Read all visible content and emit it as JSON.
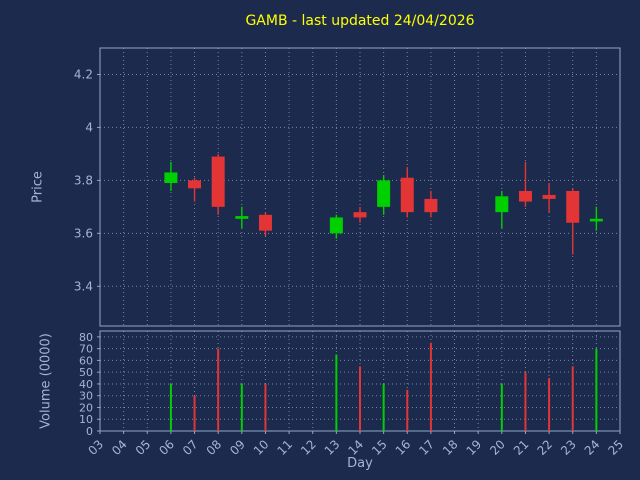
{
  "chart_data": {
    "type": "candlestick",
    "title": "GAMB - last updated 24/04/2026",
    "xlabel": "Day",
    "ylabel_price": "Price",
    "ylabel_volume": "Volume (0000)",
    "x_tick_labels": [
      "03",
      "04",
      "05",
      "06",
      "07",
      "08",
      "09",
      "10",
      "11",
      "12",
      "13",
      "14",
      "15",
      "16",
      "17",
      "18",
      "19",
      "20",
      "21",
      "22",
      "23",
      "24",
      "25"
    ],
    "price_ticks": [
      3.4,
      3.6,
      3.8,
      4.0,
      4.2
    ],
    "price_tick_labels": [
      "3.4",
      "3.6",
      "3.8",
      "4",
      "4.2"
    ],
    "volume_ticks": [
      0,
      10,
      20,
      30,
      40,
      50,
      60,
      70,
      80
    ],
    "volume_tick_labels": [
      "0",
      "10",
      "20",
      "30",
      "40",
      "50",
      "60",
      "70",
      "80"
    ],
    "xlim": [
      3,
      25
    ],
    "price_ylim": [
      3.25,
      4.3
    ],
    "volume_ylim": [
      0,
      85
    ],
    "grid": true,
    "series": [
      {
        "day": 6,
        "open": 3.79,
        "high": 3.87,
        "low": 3.76,
        "close": 3.83,
        "volume": 40
      },
      {
        "day": 7,
        "open": 3.8,
        "high": 3.81,
        "low": 3.72,
        "close": 3.77,
        "volume": 30
      },
      {
        "day": 8,
        "open": 3.89,
        "high": 3.9,
        "low": 3.67,
        "close": 3.7,
        "volume": 70
      },
      {
        "day": 9,
        "open": 3.655,
        "high": 3.7,
        "low": 3.62,
        "close": 3.665,
        "volume": 40
      },
      {
        "day": 10,
        "open": 3.67,
        "high": 3.68,
        "low": 3.59,
        "close": 3.61,
        "volume": 40
      },
      {
        "day": 13,
        "open": 3.6,
        "high": 3.67,
        "low": 3.58,
        "close": 3.66,
        "volume": 65
      },
      {
        "day": 14,
        "open": 3.68,
        "high": 3.7,
        "low": 3.64,
        "close": 3.66,
        "volume": 55
      },
      {
        "day": 15,
        "open": 3.7,
        "high": 3.82,
        "low": 3.67,
        "close": 3.8,
        "volume": 40
      },
      {
        "day": 16,
        "open": 3.81,
        "high": 3.85,
        "low": 3.66,
        "close": 3.68,
        "volume": 35
      },
      {
        "day": 17,
        "open": 3.73,
        "high": 3.76,
        "low": 3.66,
        "close": 3.68,
        "volume": 75
      },
      {
        "day": 20,
        "open": 3.68,
        "high": 3.76,
        "low": 3.62,
        "close": 3.74,
        "volume": 40
      },
      {
        "day": 21,
        "open": 3.76,
        "high": 3.87,
        "low": 3.7,
        "close": 3.72,
        "volume": 50
      },
      {
        "day": 22,
        "open": 3.745,
        "high": 3.79,
        "low": 3.68,
        "close": 3.73,
        "volume": 45
      },
      {
        "day": 23,
        "open": 3.76,
        "high": 3.77,
        "low": 3.52,
        "close": 3.64,
        "volume": 55
      },
      {
        "day": 24,
        "open": 3.645,
        "high": 3.7,
        "low": 3.61,
        "close": 3.655,
        "volume": 70
      }
    ],
    "colors": {
      "background": "#1c2a4d",
      "up": "#00cf00",
      "down": "#e33535",
      "grid": "#c8d2e6",
      "border": "#8fa8c8",
      "tick_text": "#a4b4d6",
      "title_text": "#ffff00"
    }
  }
}
